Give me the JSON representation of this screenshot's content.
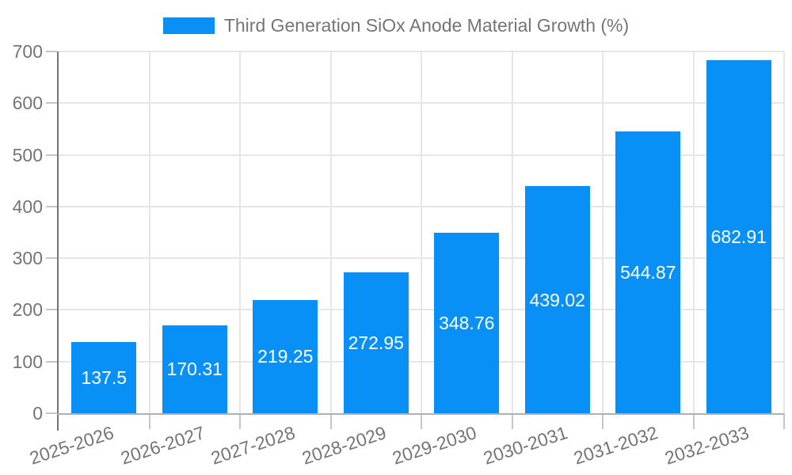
{
  "legend": {
    "label": "Third Generation SiOx Anode Material Growth (%)"
  },
  "chart_data": {
    "type": "bar",
    "title": "Third Generation SiOx Anode Material Growth (%)",
    "categories": [
      "2025-2026",
      "2026-2027",
      "2027-2028",
      "2028-2029",
      "2029-2030",
      "2030-2031",
      "2031-2032",
      "2032-2033"
    ],
    "values": [
      137.5,
      170.31,
      219.25,
      272.95,
      348.76,
      439.02,
      544.87,
      682.91
    ],
    "bar_labels": [
      "137.5",
      "170.31",
      "219.25",
      "272.95",
      "348.76",
      "439.02",
      "544.87",
      "682.91"
    ],
    "xlabel": "",
    "ylabel": "",
    "ylim": [
      0,
      700
    ],
    "yticks": [
      0,
      100,
      200,
      300,
      400,
      500,
      600,
      700
    ],
    "ytick_labels": [
      "0",
      "100",
      "200",
      "300",
      "400",
      "500",
      "600",
      "700"
    ],
    "grid": true,
    "legend_position": "top-center",
    "x_tick_rotation_deg": -18,
    "colors": {
      "bar": "#0990f7",
      "bar_label_text": "#ffffff",
      "axis_text": "#757575",
      "gridline": "#e6e6e6",
      "y_axis_line": "#757575",
      "x_axis_line": "#b0b0b0",
      "tick": "#c6c6c6",
      "background": "#ffffff"
    }
  }
}
